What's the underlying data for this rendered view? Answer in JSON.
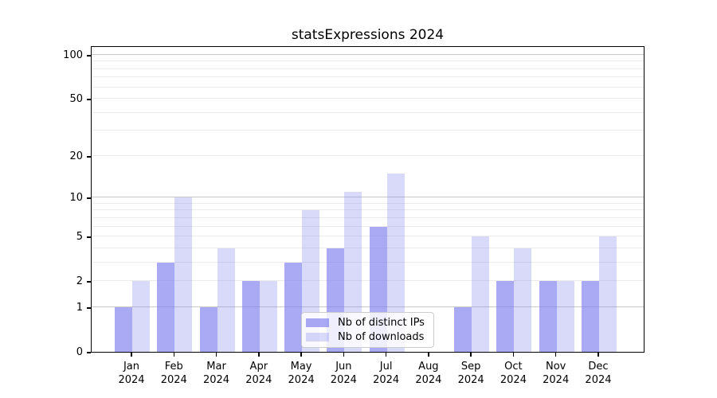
{
  "figure": {
    "title": "statsExpressions 2024"
  },
  "legend": {
    "items": [
      {
        "label": "Nb of distinct IPs"
      },
      {
        "label": "Nb of downloads"
      }
    ]
  },
  "chart_data": {
    "type": "bar",
    "title": "statsExpressions 2024",
    "categories": [
      "Jan",
      "Feb",
      "Mar",
      "Apr",
      "May",
      "Jun",
      "Jul",
      "Aug",
      "Sep",
      "Oct",
      "Nov",
      "Dec"
    ],
    "x_year": "2024",
    "series": [
      {
        "name": "Nb of distinct IPs",
        "key": "ips",
        "values": [
          1,
          3,
          1,
          2,
          3,
          4,
          6,
          0,
          1,
          2,
          2,
          2
        ],
        "color": "rgba(120,120,238,0.64)"
      },
      {
        "name": "Nb of downloads",
        "key": "downloads",
        "values": [
          2,
          10,
          4,
          2,
          8,
          11,
          15,
          0,
          5,
          4,
          2,
          5
        ],
        "color": "rgba(120,120,238,0.28)"
      }
    ],
    "yscale": "log10(1+x)",
    "ylim": [
      0,
      116
    ],
    "yticks": [
      100,
      50,
      20,
      10,
      5,
      2,
      1,
      0
    ],
    "major_gridlines": [
      1,
      10,
      100
    ],
    "minor_gridlines": [
      2,
      3,
      4,
      5,
      6,
      7,
      8,
      9,
      20,
      30,
      40,
      50,
      60,
      70,
      80,
      90
    ],
    "grid": true,
    "legend_position": "lower center"
  },
  "colors": {
    "ips_bar": "rgba(120,120,238,0.64)",
    "downloads_bar": "rgba(120,120,238,0.28)",
    "major_grid": "#c9c9c9",
    "minor_grid": "#ebebeb",
    "axis": "#000000",
    "legend_border": "#cccccc"
  }
}
